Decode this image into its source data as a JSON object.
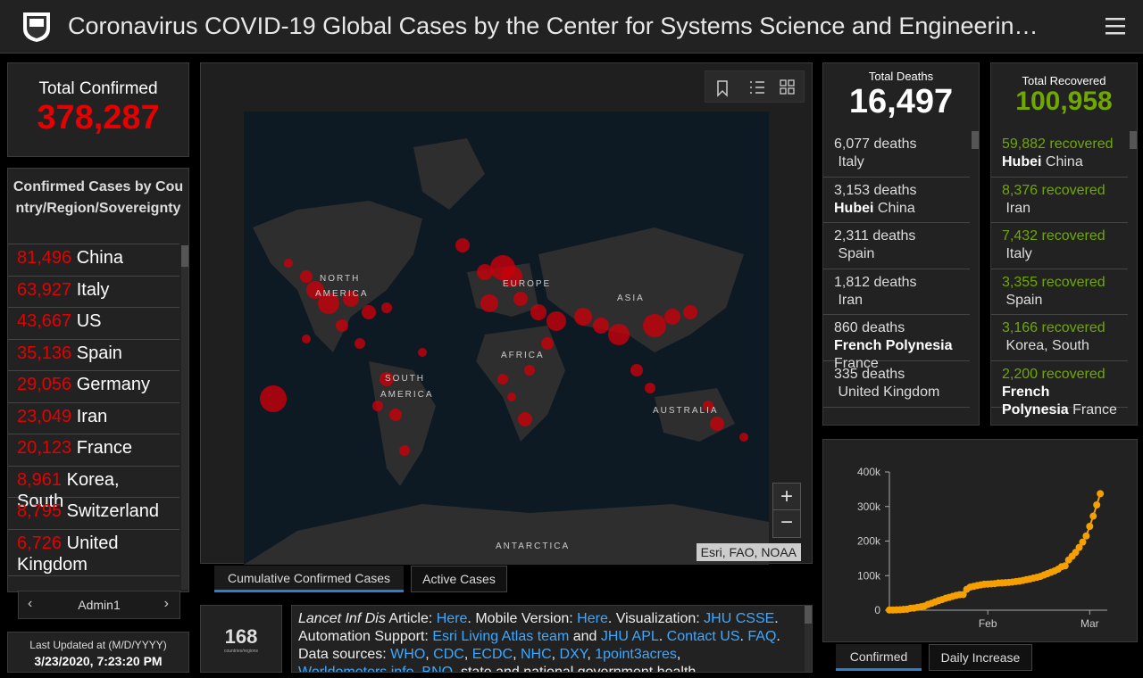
{
  "header": {
    "title": "Coronavirus COVID-19 Global Cases by the Center for Systems Science and Engineerin…"
  },
  "total_confirmed": {
    "label": "Total Confirmed",
    "value": "378,287"
  },
  "country_list": {
    "title": "Confirmed Cases by Country/Region/Sovereignty",
    "rows": [
      {
        "count": "81,496",
        "name": "China"
      },
      {
        "count": "63,927",
        "name": "Italy"
      },
      {
        "count": "43,667",
        "name": "US"
      },
      {
        "count": "35,136",
        "name": "Spain"
      },
      {
        "count": "29,056",
        "name": "Germany"
      },
      {
        "count": "23,049",
        "name": "Iran"
      },
      {
        "count": "20,123",
        "name": "France"
      },
      {
        "count": "8,961",
        "name": "Korea, South"
      },
      {
        "count": "8,795",
        "name": "Switzerland"
      },
      {
        "count": "6,726",
        "name": "United Kingdom"
      }
    ],
    "nav_label": "Admin1"
  },
  "last_updated": {
    "label": "Last Updated at (M/D/YYYY)",
    "value": "3/23/2020, 7:23:20 PM"
  },
  "map": {
    "labels": [
      "NORTH AMERICA",
      "EUROPE",
      "ASIA",
      "AFRICA",
      "SOUTH AMERICA",
      "AUSTRALIA",
      "ANTARCTICA"
    ],
    "attribution": "Esri, FAO, NOAA",
    "zoom_in": "+",
    "zoom_out": "−",
    "tabs": [
      "Cumulative Confirmed Cases",
      "Active Cases"
    ]
  },
  "countries_count": {
    "value": "168",
    "label": "countries/regions"
  },
  "info": {
    "segments": [
      {
        "text": "Lancet Inf Dis",
        "style": "italic"
      },
      {
        "text": " Article: "
      },
      {
        "text": "Here",
        "link": true
      },
      {
        "text": ". Mobile Version: "
      },
      {
        "text": "Here",
        "link": true
      },
      {
        "text": ". Visualization: "
      },
      {
        "text": "JHU CSSE",
        "link": true
      },
      {
        "text": ". Automation Support: "
      },
      {
        "text": "Esri Living Atlas team",
        "link": true
      },
      {
        "text": " and "
      },
      {
        "text": "JHU APL",
        "link": true
      },
      {
        "text": ". "
      },
      {
        "text": "Contact US",
        "link": true
      },
      {
        "text": ". "
      },
      {
        "text": "FAQ",
        "link": true
      },
      {
        "text": ". Data sources: "
      },
      {
        "text": "WHO",
        "link": true
      },
      {
        "text": ", "
      },
      {
        "text": "CDC",
        "link": true
      },
      {
        "text": ", "
      },
      {
        "text": "ECDC",
        "link": true
      },
      {
        "text": ", "
      },
      {
        "text": "NHC",
        "link": true
      },
      {
        "text": ", "
      },
      {
        "text": "DXY",
        "link": true
      },
      {
        "text": ", "
      },
      {
        "text": "1point3acres",
        "link": true
      },
      {
        "text": ", "
      },
      {
        "text": "Worldometers.info",
        "link": true
      },
      {
        "text": ", "
      },
      {
        "text": "BNO",
        "link": true
      },
      {
        "text": ", state and national government health"
      }
    ]
  },
  "deaths": {
    "label": "Total Deaths",
    "value": "16,497",
    "rows": [
      {
        "count": "6,077",
        "unit": "deaths",
        "country": "Italy"
      },
      {
        "count": "3,153",
        "unit": "deaths",
        "region": "Hubei",
        "country": "China"
      },
      {
        "count": "2,311",
        "unit": "deaths",
        "country": "Spain"
      },
      {
        "count": "1,812",
        "unit": "deaths",
        "country": "Iran"
      },
      {
        "count": "860",
        "unit": "deaths",
        "region": "French Polynesia",
        "country": "France"
      },
      {
        "count": "335",
        "unit": "deaths",
        "country": "United Kingdom"
      }
    ]
  },
  "recovered": {
    "label": "Total Recovered",
    "value": "100,958",
    "rows": [
      {
        "count": "59,882",
        "unit": "recovered",
        "region": "Hubei",
        "country": "China"
      },
      {
        "count": "8,376",
        "unit": "recovered",
        "country": "Iran"
      },
      {
        "count": "7,432",
        "unit": "recovered",
        "country": "Italy"
      },
      {
        "count": "3,355",
        "unit": "recovered",
        "country": "Spain"
      },
      {
        "count": "3,166",
        "unit": "recovered",
        "country": "Korea, South"
      },
      {
        "count": "2,200",
        "unit": "recovered",
        "region": "French Polynesia",
        "country": "France"
      }
    ]
  },
  "chart_data": {
    "type": "line",
    "color": "#f5a000",
    "values": [
      555,
      654,
      941,
      1434,
      2118,
      2927,
      5578,
      6166,
      8234,
      9927,
      12038,
      16787,
      19881,
      23892,
      27635,
      30794,
      34391,
      37120,
      40150,
      42762,
      44802,
      45221,
      60368,
      66885,
      69030,
      71224,
      73258,
      75136,
      75639,
      76197,
      76819,
      78572,
      78958,
      79561,
      80406,
      81388,
      82746,
      84112,
      86011,
      88369,
      90306,
      92840,
      95120,
      97886,
      101801,
      105847,
      109821,
      113590,
      118620,
      125875,
      128352,
      145205,
      156101,
      167454,
      181574,
      197102,
      214821,
      242570,
      272208,
      304507,
      336953
    ],
    "xlim": [
      0,
      62
    ],
    "xticks": [
      {
        "value": 28,
        "label": "Feb"
      },
      {
        "value": 57,
        "label": "Mar"
      }
    ],
    "ylim": [
      0,
      400000
    ],
    "yticks": [
      {
        "value": 0,
        "label": "0"
      },
      {
        "value": 100000,
        "label": "100k"
      },
      {
        "value": 200000,
        "label": "200k"
      },
      {
        "value": 300000,
        "label": "300k"
      },
      {
        "value": 400000,
        "label": "400k"
      }
    ],
    "tabs": [
      "Confirmed",
      "Daily Increase"
    ]
  }
}
